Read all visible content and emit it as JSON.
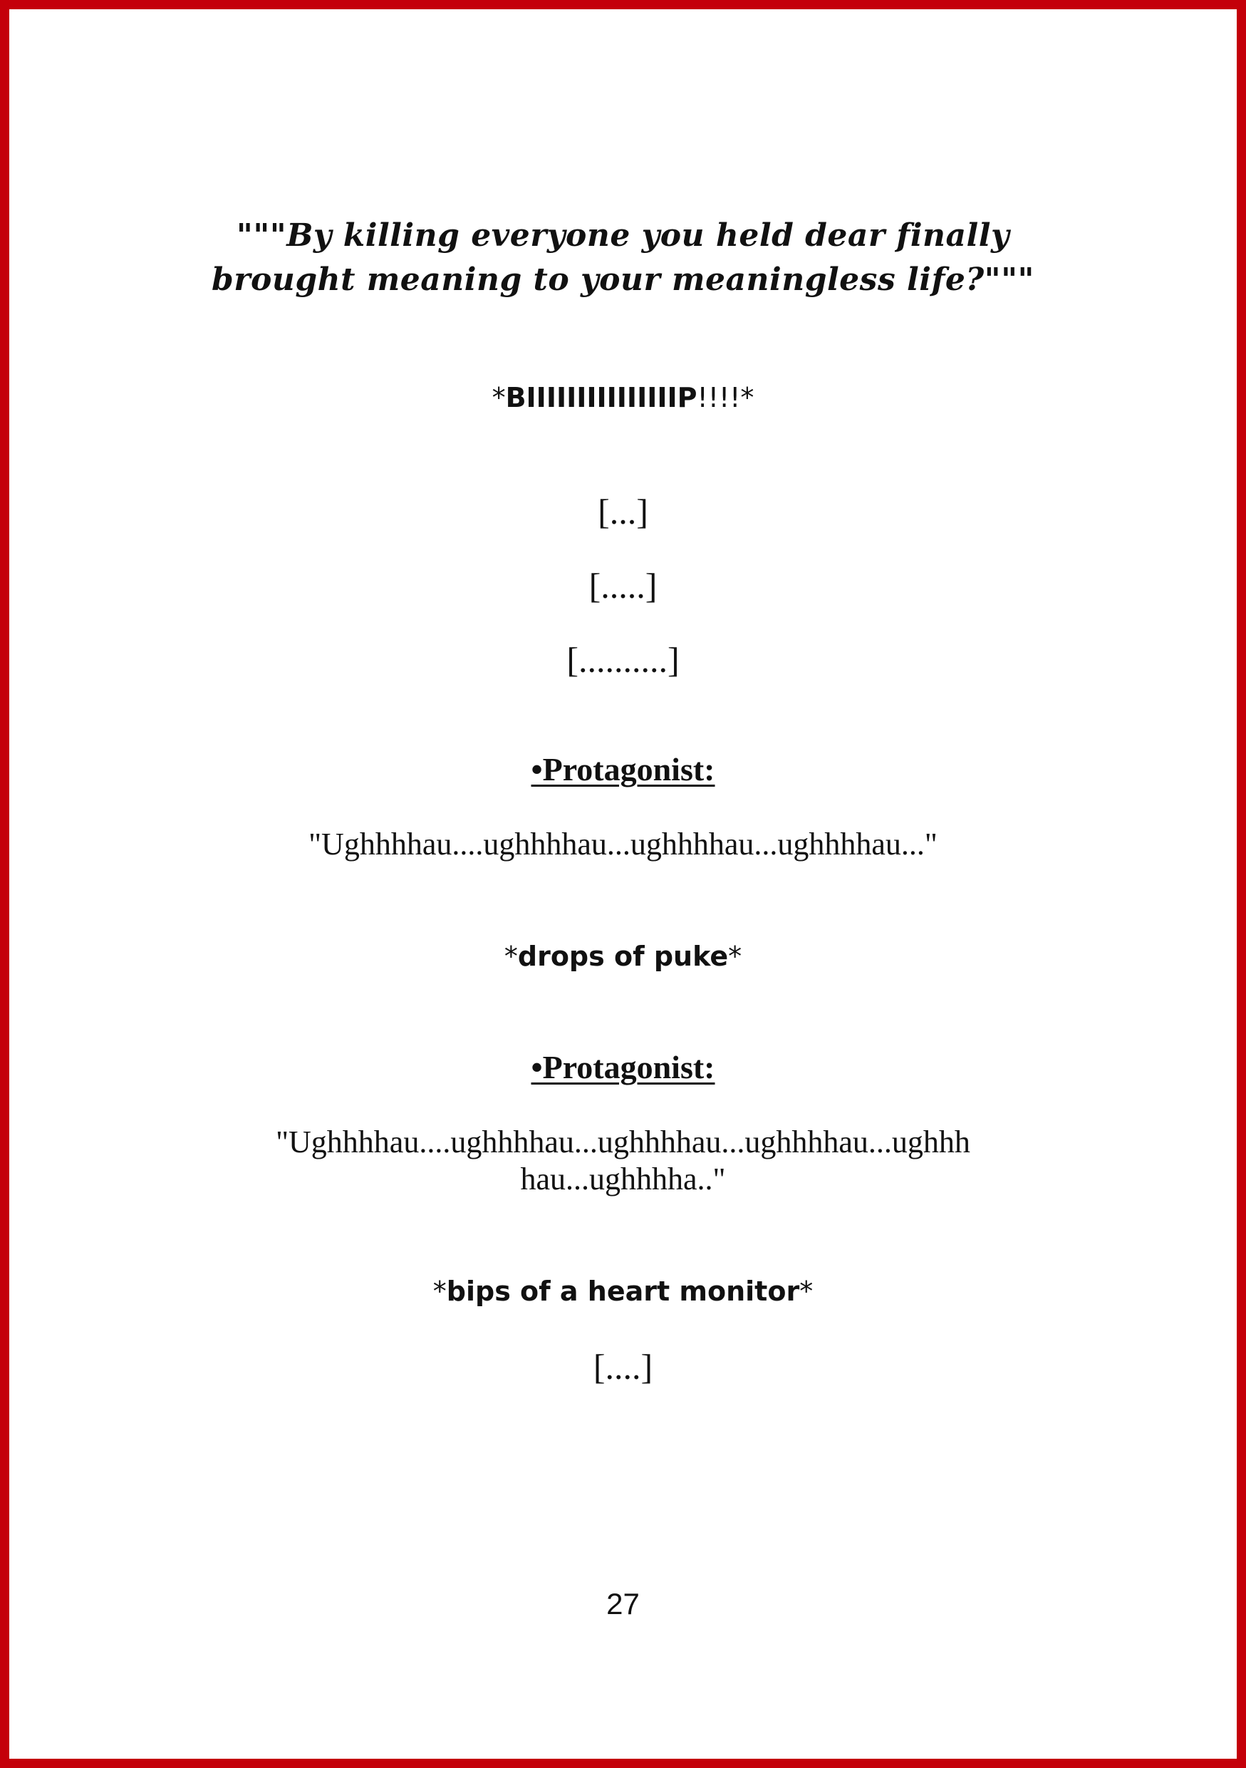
{
  "frame_color": "#c4000a",
  "quote": {
    "line1": "\"\"\"By killing everyone you held dear finally",
    "line2": "brought meaning to your meaningless life?\"\"\""
  },
  "beep": {
    "open": "*",
    "word": "BIIIIIIIIIIIIIIIP",
    "close": "!!!!*"
  },
  "pauses": {
    "first": "[...]",
    "second": "[.....]",
    "third": "[..........]"
  },
  "speaker_1": "•Protagonist:",
  "line_1": "\"Ughhhhau....ughhhhau...ughhhhau...ughhhhau...\"",
  "sfx_puke": {
    "open": "*",
    "word": "drops of puke",
    "close": "*"
  },
  "speaker_2": "•Protagonist:",
  "line_2": {
    "part1": "\"Ughhhhau....ughhhhau...ughhhhau...ughhhhau...ughhh",
    "part2": "hau...ughhhha..\""
  },
  "sfx_monitor": {
    "open": "*",
    "word": "bips of a heart monitor",
    "close": "*"
  },
  "final_pause": "[....]",
  "page_number": "27"
}
